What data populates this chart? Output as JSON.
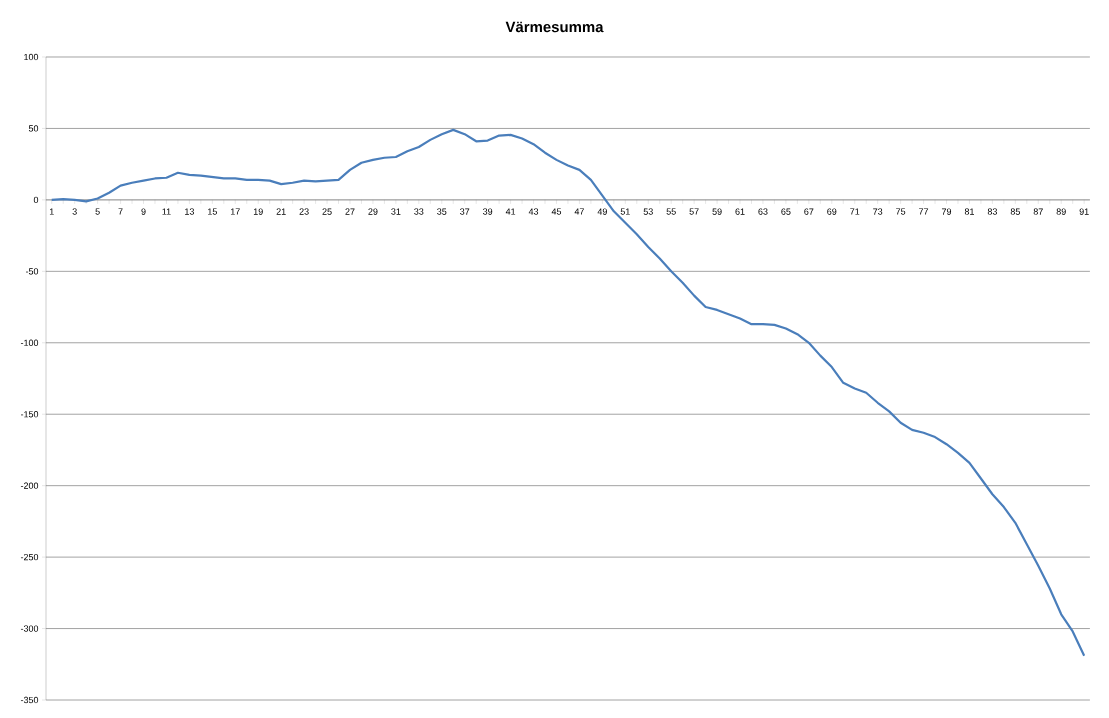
{
  "chart_data": {
    "type": "line",
    "title": "Värmesumma",
    "categories": [
      "1",
      null,
      "3",
      null,
      "5",
      null,
      "7",
      null,
      "9",
      null,
      "11",
      null,
      "13",
      null,
      "15",
      null,
      "17",
      null,
      "19",
      null,
      "21",
      null,
      "23",
      null,
      "25",
      null,
      "27",
      null,
      "29",
      null,
      "31",
      null,
      "33",
      null,
      "35",
      null,
      "37",
      null,
      "39",
      null,
      "41",
      null,
      "43",
      null,
      "45",
      null,
      "47",
      null,
      "49",
      null,
      "51",
      null,
      "53",
      null,
      "55",
      null,
      "57",
      null,
      "59",
      null,
      "61",
      null,
      "63",
      null,
      "65",
      null,
      "67",
      null,
      "69",
      null,
      "71",
      null,
      "73",
      null,
      "75",
      null,
      "77",
      null,
      "79",
      null,
      "81",
      null,
      "83",
      null,
      "85",
      null,
      "87",
      null,
      "89",
      null,
      "91"
    ],
    "series": [
      {
        "color": "#4a7ebb",
        "values": [
          0,
          0.5,
          0,
          -1,
          1,
          5,
          10,
          12,
          13.5,
          15,
          15.5,
          19,
          17.5,
          17,
          16,
          15,
          15,
          14,
          14,
          13.5,
          11,
          12,
          13.5,
          13,
          13.5,
          14,
          21,
          26,
          28,
          29.5,
          30,
          34,
          37,
          42,
          46,
          49,
          46,
          41,
          41.5,
          45,
          45.5,
          43,
          39,
          33,
          28,
          24,
          21,
          14,
          3,
          -8,
          -16,
          -24,
          -33,
          -41,
          -50,
          -58,
          -67,
          -75,
          -77,
          -80,
          -83,
          -87,
          -87,
          -87.5,
          -90,
          -94,
          -100,
          -109,
          -117,
          -128,
          -132,
          -135,
          -142,
          -148,
          -156,
          -161,
          -163,
          -166,
          -171,
          -177,
          -184,
          -195,
          -206,
          -215,
          -226,
          -241,
          -256,
          -272,
          -290,
          -302,
          -319
        ]
      }
    ],
    "ylim": [
      -350,
      100
    ],
    "yticks": [
      -350,
      -300,
      -250,
      -200,
      -150,
      -100,
      -50,
      0,
      50,
      100
    ],
    "grid": "y"
  }
}
